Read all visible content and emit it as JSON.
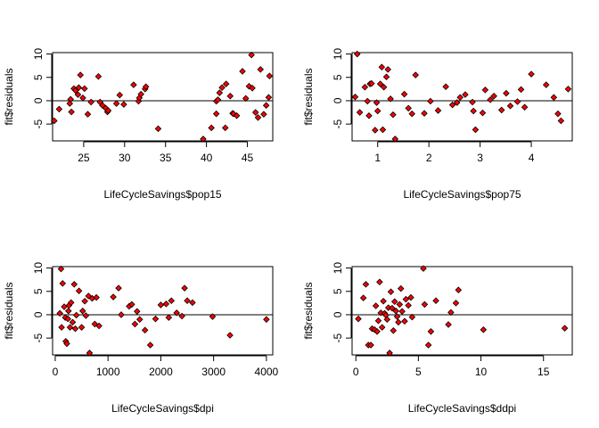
{
  "chart_data": [
    {
      "type": "scatter",
      "xlabel": "LifeCycleSavings$pop15",
      "ylabel": "fit$residuals",
      "xticks": [
        25,
        30,
        35,
        40,
        45
      ],
      "yticks": [
        -5,
        0,
        5,
        10
      ],
      "xlim": [
        21.2,
        48.1
      ],
      "ylim": [
        -8.6,
        10.3
      ],
      "hline": 0,
      "point_fill": "#ff0000",
      "point_stroke": "#000000",
      "x": [
        21.4,
        22.0,
        23.3,
        23.4,
        23.5,
        23.8,
        24.0,
        24.3,
        24.4,
        24.6,
        24.9,
        25.1,
        25.5,
        25.9,
        26.8,
        27.0,
        27.3,
        27.7,
        27.9,
        28.0,
        29.0,
        29.4,
        29.9,
        31.1,
        31.7,
        31.8,
        32.0,
        32.5,
        32.6,
        34.1,
        39.6,
        40.6,
        41.2,
        41.2,
        41.4,
        41.6,
        41.9,
        42.3,
        42.4,
        42.9,
        43.2,
        43.3,
        43.7,
        44.4,
        44.8,
        45.2,
        45.5,
        45.6,
        46.0,
        46.3,
        46.6,
        47.0,
        47.3,
        47.6,
        47.7
      ],
      "y": [
        -4.3,
        -1.8,
        -0.6,
        0.3,
        -2.4,
        2.6,
        2.2,
        1.3,
        2.8,
        5.5,
        0.6,
        2.6,
        -2.9,
        -0.3,
        5.2,
        -0.3,
        -1.0,
        -1.6,
        -2.4,
        -2.1,
        -0.6,
        1.2,
        -0.8,
        3.4,
        -0.1,
        0.6,
        1.4,
        2.5,
        3.0,
        -6.0,
        -8.2,
        -5.8,
        -2.8,
        -0.1,
        0.2,
        1.7,
        2.8,
        -5.8,
        3.6,
        1.0,
        -2.7,
        -2.8,
        -3.2,
        6.3,
        0.5,
        3.1,
        9.8,
        2.7,
        -2.5,
        -3.6,
        6.7,
        -2.9,
        -1.0,
        0.7,
        5.3
      ]
    },
    {
      "type": "scatter",
      "xlabel": "LifeCycleSavings$pop75",
      "ylabel": "fit$residuals",
      "xticks": [
        1,
        2,
        3,
        4
      ],
      "yticks": [
        -5,
        0,
        5,
        10
      ],
      "xlim": [
        0.5,
        4.8
      ],
      "ylim": [
        -8.6,
        10.3
      ],
      "hline": 0,
      "point_fill": "#ff0000",
      "point_stroke": "#000000",
      "x": [
        0.56,
        0.6,
        0.65,
        0.75,
        0.8,
        0.83,
        0.85,
        0.88,
        0.95,
        0.98,
        1.0,
        1.05,
        1.08,
        1.1,
        1.12,
        1.17,
        1.2,
        1.25,
        1.3,
        1.34,
        1.52,
        1.6,
        1.67,
        1.74,
        1.91,
        2.03,
        2.18,
        2.33,
        2.46,
        2.55,
        2.61,
        2.71,
        2.85,
        2.87,
        2.91,
        3.05,
        3.1,
        3.2,
        3.27,
        3.42,
        3.51,
        3.59,
        3.73,
        3.8,
        3.87,
        4.0,
        4.29,
        4.44,
        4.52,
        4.58,
        4.72
      ],
      "y": [
        0.8,
        10.0,
        -2.5,
        2.9,
        -0.1,
        -3.2,
        3.6,
        3.7,
        -6.3,
        -0.4,
        -2.2,
        3.6,
        7.2,
        -6.2,
        2.9,
        5.1,
        6.7,
        0.4,
        -3.0,
        -8.2,
        1.4,
        -1.6,
        -2.8,
        5.5,
        -2.7,
        -0.1,
        -2.1,
        3.0,
        -0.9,
        -0.4,
        0.7,
        1.3,
        -0.3,
        -2.2,
        -6.2,
        -2.6,
        2.3,
        0.2,
        1.0,
        -2.0,
        1.6,
        -1.1,
        -0.2,
        2.4,
        -1.4,
        5.7,
        3.4,
        0.7,
        -2.8,
        -4.3,
        2.5
      ]
    },
    {
      "type": "scatter",
      "xlabel": "LifeCycleSavings$dpi",
      "ylabel": "fit$residuals",
      "xticks": [
        0,
        1000,
        2000,
        3000,
        4000
      ],
      "yticks": [
        -5,
        0,
        5,
        10
      ],
      "xlim": [
        -50,
        4120
      ],
      "ylim": [
        -8.6,
        10.3
      ],
      "hline": 0,
      "point_fill": "#ff0000",
      "point_stroke": "#000000",
      "x": [
        88,
        110,
        120,
        140,
        170,
        190,
        200,
        220,
        240,
        250,
        260,
        280,
        300,
        330,
        360,
        380,
        400,
        450,
        500,
        520,
        560,
        580,
        630,
        650,
        700,
        750,
        780,
        830,
        1100,
        1200,
        1250,
        1400,
        1450,
        1510,
        1550,
        1600,
        1700,
        1800,
        1900,
        2000,
        2100,
        2150,
        2200,
        2300,
        2400,
        2450,
        2500,
        2600,
        2980,
        3310,
        4000
      ],
      "y": [
        0.3,
        9.8,
        -2.7,
        6.7,
        1.7,
        -0.6,
        -5.7,
        -6.2,
        -0.9,
        0.8,
        2.0,
        -2.7,
        2.6,
        -1.6,
        6.5,
        -3.0,
        -0.1,
        5.1,
        -2.7,
        0.8,
        2.9,
        -0.2,
        4.0,
        -8.2,
        3.5,
        -2.0,
        3.7,
        -2.4,
        3.8,
        5.7,
        0.0,
        1.8,
        2.2,
        -2.0,
        0.7,
        -1.0,
        -3.3,
        -6.5,
        -0.9,
        2.1,
        2.3,
        -0.6,
        3.0,
        0.4,
        -0.3,
        5.7,
        3.0,
        2.6,
        -0.4,
        -4.4,
        -1.0
      ]
    },
    {
      "type": "scatter",
      "xlabel": "LifeCycleSavings$ddpi",
      "ylabel": "fit$residuals",
      "xticks": [
        0,
        5,
        10,
        15
      ],
      "yticks": [
        -5,
        0,
        5,
        10
      ],
      "xlim": [
        -0.3,
        17.3
      ],
      "ylim": [
        -8.6,
        10.3
      ],
      "hline": 0,
      "point_fill": "#ff0000",
      "point_stroke": "#000000",
      "x": [
        0.2,
        0.6,
        0.8,
        1.0,
        1.2,
        1.3,
        1.5,
        1.6,
        1.7,
        1.8,
        1.9,
        2.0,
        2.1,
        2.2,
        2.3,
        2.4,
        2.5,
        2.6,
        2.7,
        2.8,
        2.9,
        3.0,
        3.1,
        3.2,
        3.3,
        3.4,
        3.5,
        3.6,
        3.7,
        3.9,
        4.0,
        4.2,
        4.4,
        4.5,
        5.4,
        5.5,
        5.8,
        6.0,
        6.4,
        7.4,
        7.6,
        8.0,
        8.2,
        10.2,
        16.7
      ],
      "y": [
        -0.9,
        3.6,
        6.5,
        -6.5,
        -6.5,
        -3.0,
        -3.2,
        1.9,
        -3.6,
        -1.3,
        7.0,
        0.4,
        -2.7,
        2.9,
        0.3,
        -0.1,
        -1.0,
        1.5,
        -8.2,
        4.9,
        1.4,
        -3.4,
        2.8,
        0.8,
        -0.4,
        -1.6,
        2.2,
        5.6,
        0.7,
        -1.4,
        3.3,
        2.0,
        3.7,
        -0.5,
        9.9,
        2.2,
        -6.5,
        -3.6,
        3.0,
        -2.1,
        0.5,
        2.5,
        5.3,
        -3.2,
        -2.9
      ]
    }
  ]
}
